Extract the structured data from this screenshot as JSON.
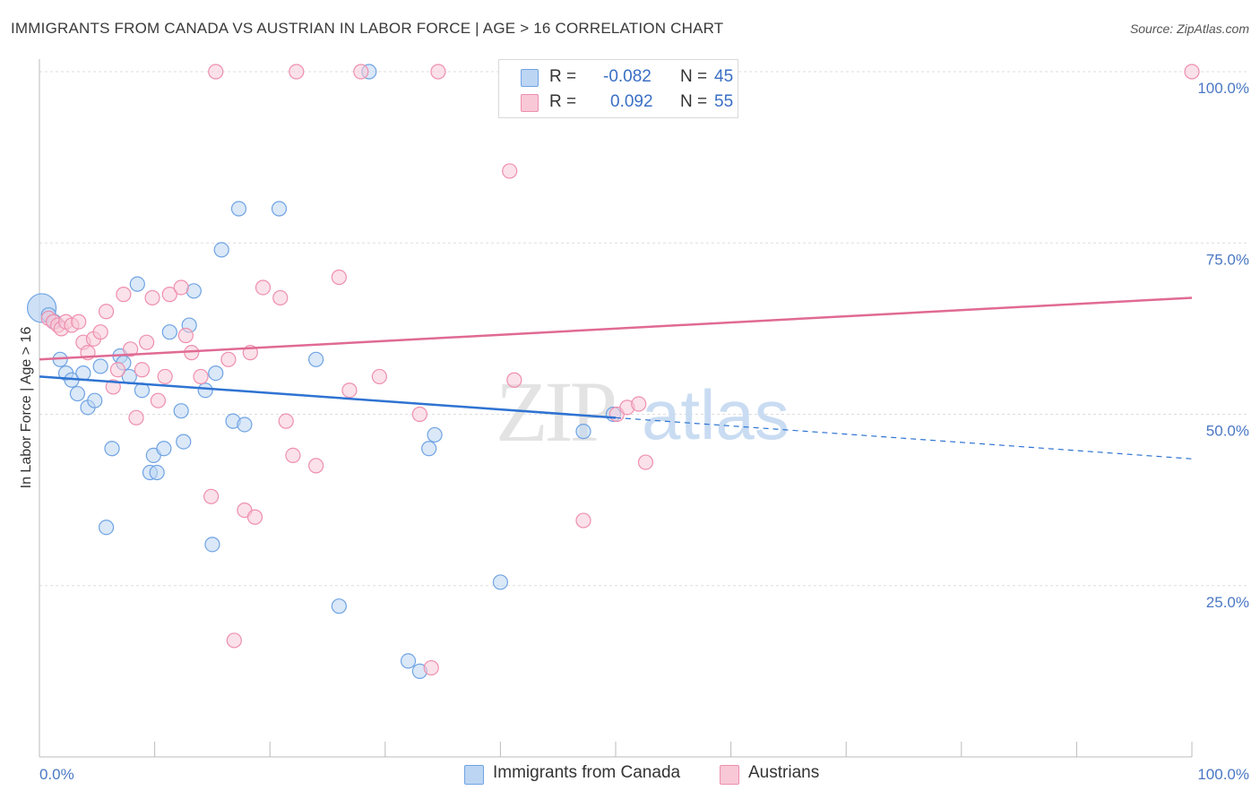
{
  "header": {
    "title": "IMMIGRANTS FROM CANADA VS AUSTRIAN IN LABOR FORCE | AGE > 16 CORRELATION CHART",
    "source": "Source: ZipAtlas.com"
  },
  "watermark": {
    "zip": "ZIP",
    "atlas": "atlas"
  },
  "legend_top": {
    "rows": [
      {
        "r_label": "R =",
        "r_value": "-0.082",
        "n_label": "N =",
        "n_value": "45",
        "color": "#a8c8f0"
      },
      {
        "r_label": "R =",
        "r_value": "0.092",
        "n_label": "N =",
        "n_value": "55",
        "color": "#f7b8cb"
      }
    ]
  },
  "legend_bottom": {
    "items": [
      {
        "label": "Immigrants from Canada",
        "color": "#a8c8f0"
      },
      {
        "label": "Austrians",
        "color": "#f7b8cb"
      }
    ]
  },
  "chart_data": {
    "type": "scatter",
    "title": "IMMIGRANTS FROM CANADA VS AUSTRIAN IN LABOR FORCE | AGE > 16 CORRELATION CHART",
    "xlabel": "",
    "ylabel": "In Labor Force | Age > 16",
    "xlim": [
      0,
      100
    ],
    "ylim": [
      0,
      100
    ],
    "x_tick_labels": [
      "0.0%",
      "100.0%"
    ],
    "y_ticks": [
      25,
      50,
      75,
      100
    ],
    "y_tick_labels": [
      "25.0%",
      "50.0%",
      "75.0%",
      "100.0%"
    ],
    "grid": true,
    "legend_position": "bottom",
    "series": [
      {
        "name": "Immigrants from Canada",
        "color": "#6fa3e3",
        "fill": "#bcd5f3",
        "trend": {
          "x0": 0,
          "y0": 55.5,
          "x1": 50,
          "y1": 49.5,
          "dashed_to": 100,
          "dashed_y1": 43.5,
          "color": "#2e73d2"
        },
        "points": [
          [
            0.2,
            65.5
          ],
          [
            0.8,
            64.5
          ],
          [
            1.3,
            63.5
          ],
          [
            1.8,
            58.0
          ],
          [
            2.3,
            56.0
          ],
          [
            2.8,
            55.0
          ],
          [
            3.3,
            53.0
          ],
          [
            3.8,
            56.0
          ],
          [
            4.2,
            51.0
          ],
          [
            4.8,
            52.0
          ],
          [
            5.3,
            57.0
          ],
          [
            5.8,
            33.5
          ],
          [
            6.3,
            45.0
          ],
          [
            7.0,
            58.5
          ],
          [
            7.3,
            57.5
          ],
          [
            7.8,
            55.5
          ],
          [
            8.5,
            69.0
          ],
          [
            8.9,
            53.5
          ],
          [
            9.6,
            41.5
          ],
          [
            9.9,
            44.0
          ],
          [
            10.2,
            41.5
          ],
          [
            10.8,
            45.0
          ],
          [
            11.3,
            62.0
          ],
          [
            12.3,
            50.5
          ],
          [
            12.5,
            46.0
          ],
          [
            13.0,
            63.0
          ],
          [
            13.4,
            68.0
          ],
          [
            14.4,
            53.5
          ],
          [
            15.0,
            31.0
          ],
          [
            15.3,
            56.0
          ],
          [
            15.8,
            74.0
          ],
          [
            16.8,
            49.0
          ],
          [
            17.3,
            80.0
          ],
          [
            17.8,
            48.5
          ],
          [
            20.8,
            80.0
          ],
          [
            24.0,
            58.0
          ],
          [
            26.0,
            22.0
          ],
          [
            28.6,
            100.0
          ],
          [
            32.0,
            14.0
          ],
          [
            33.0,
            12.5
          ],
          [
            33.8,
            45.0
          ],
          [
            34.3,
            47.0
          ],
          [
            40.0,
            25.5
          ],
          [
            47.2,
            47.5
          ],
          [
            49.8,
            50.0
          ]
        ]
      },
      {
        "name": "Austrians",
        "color": "#ee8fae",
        "fill": "#f8c8d7",
        "trend": {
          "x0": 0,
          "y0": 58.0,
          "x1": 100,
          "y1": 67.0,
          "color": "#e06a94"
        },
        "points": [
          [
            0.8,
            64.0
          ],
          [
            1.2,
            63.5
          ],
          [
            1.6,
            63.0
          ],
          [
            1.9,
            62.5
          ],
          [
            2.3,
            63.5
          ],
          [
            2.8,
            63.0
          ],
          [
            3.4,
            63.5
          ],
          [
            3.8,
            60.5
          ],
          [
            4.2,
            59.0
          ],
          [
            4.7,
            61.0
          ],
          [
            5.3,
            62.0
          ],
          [
            5.8,
            65.0
          ],
          [
            6.4,
            54.0
          ],
          [
            6.8,
            56.5
          ],
          [
            7.3,
            67.5
          ],
          [
            7.9,
            59.5
          ],
          [
            8.4,
            49.5
          ],
          [
            8.9,
            56.5
          ],
          [
            9.3,
            60.5
          ],
          [
            9.8,
            67.0
          ],
          [
            10.3,
            52.0
          ],
          [
            10.9,
            55.5
          ],
          [
            11.3,
            67.5
          ],
          [
            12.3,
            68.5
          ],
          [
            12.7,
            61.5
          ],
          [
            13.2,
            59.0
          ],
          [
            14.0,
            55.5
          ],
          [
            14.9,
            38.0
          ],
          [
            15.3,
            100.0
          ],
          [
            16.4,
            58.0
          ],
          [
            16.9,
            17.0
          ],
          [
            17.8,
            36.0
          ],
          [
            18.3,
            59.0
          ],
          [
            18.7,
            35.0
          ],
          [
            19.4,
            68.5
          ],
          [
            20.9,
            67.0
          ],
          [
            21.4,
            49.0
          ],
          [
            22.0,
            44.0
          ],
          [
            22.3,
            100.0
          ],
          [
            24.0,
            42.5
          ],
          [
            26.0,
            70.0
          ],
          [
            26.9,
            53.5
          ],
          [
            27.9,
            100.0
          ],
          [
            29.5,
            55.5
          ],
          [
            33.0,
            50.0
          ],
          [
            34.0,
            13.0
          ],
          [
            34.6,
            100.0
          ],
          [
            40.8,
            85.5
          ],
          [
            41.2,
            55.0
          ],
          [
            47.2,
            34.5
          ],
          [
            50.1,
            50.0
          ],
          [
            51.0,
            51.0
          ],
          [
            52.0,
            51.5
          ],
          [
            52.6,
            43.0
          ],
          [
            100.0,
            100.0
          ]
        ]
      }
    ]
  }
}
